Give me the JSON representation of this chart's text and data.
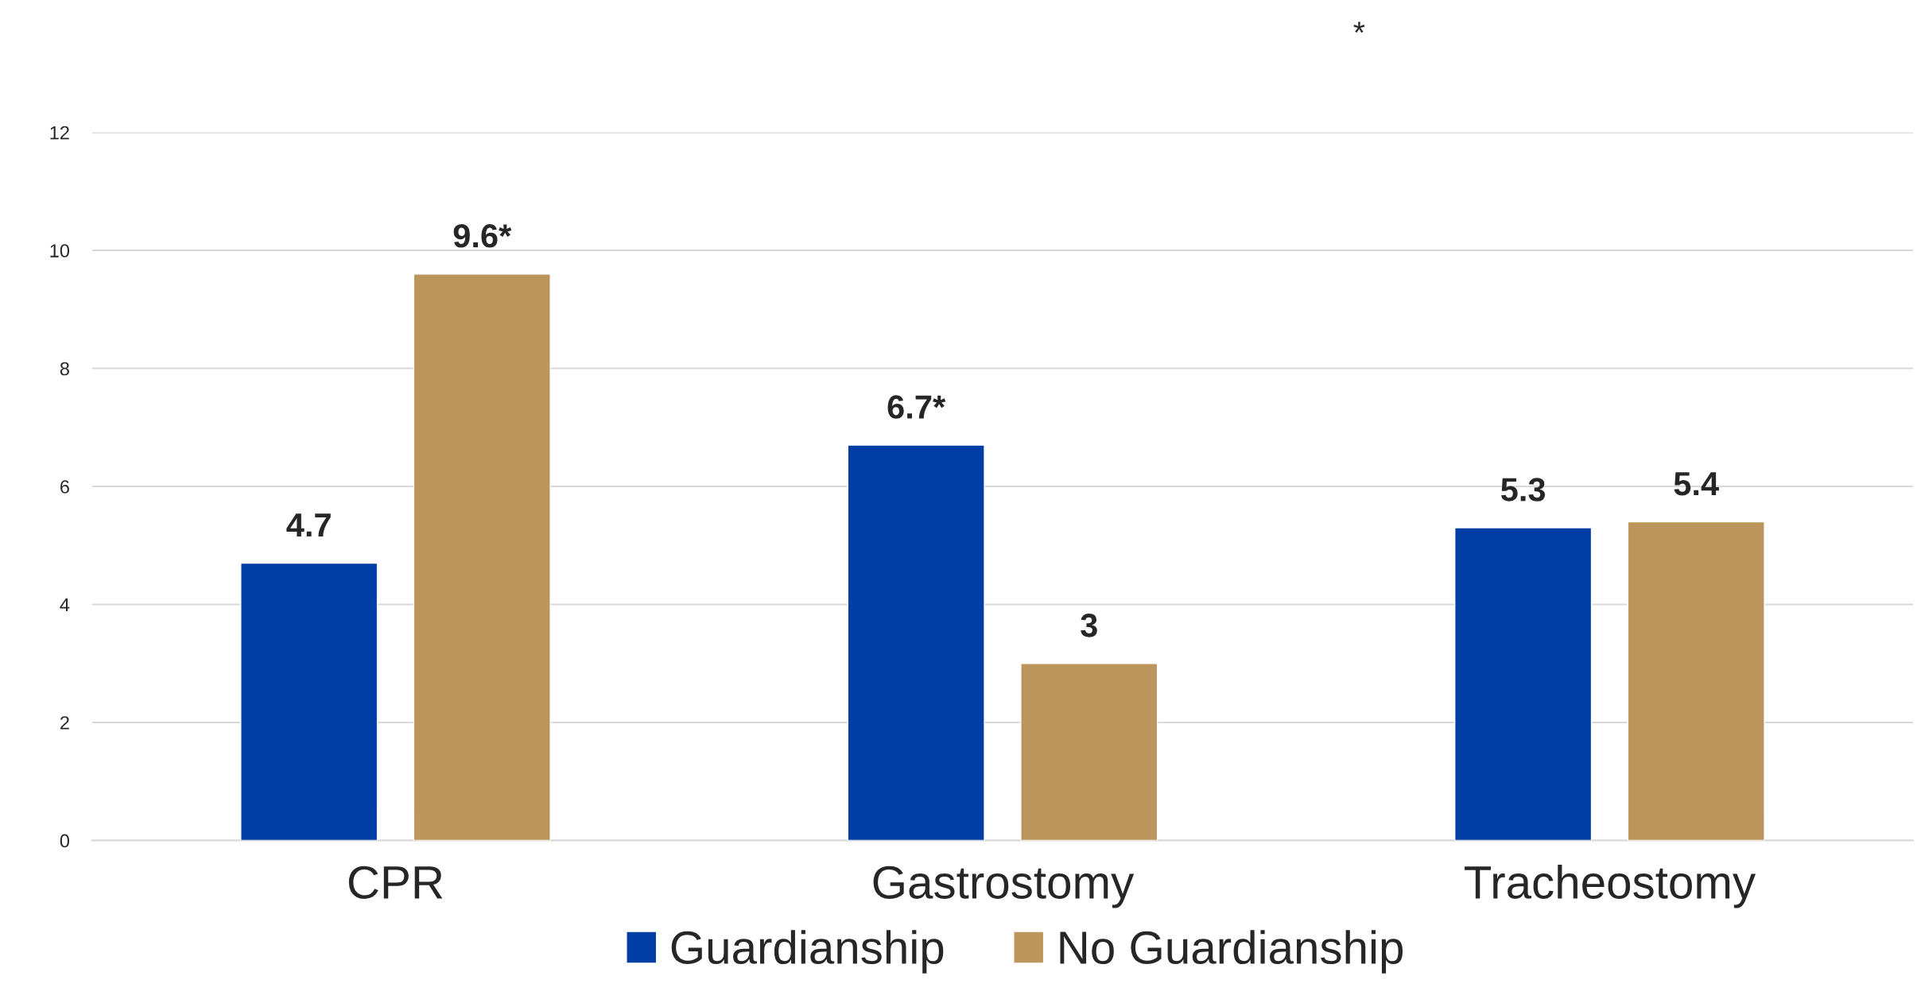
{
  "chart_data": {
    "type": "bar",
    "categories": [
      "CPR",
      "Gastrostomy",
      "Tracheostomy"
    ],
    "series": [
      {
        "name": "Guardianship",
        "color": "#003da5",
        "values": [
          4.7,
          6.7,
          5.3
        ],
        "value_labels": [
          "4.7",
          "6.7*",
          "5.3"
        ]
      },
      {
        "name": "No Guardianship",
        "color": "#bc955c",
        "values": [
          9.6,
          3,
          5.4
        ],
        "value_labels": [
          "9.6*",
          "3",
          "5.4"
        ]
      }
    ],
    "ylim": [
      0,
      12
    ],
    "yticks": [
      0,
      2,
      4,
      6,
      8,
      10,
      12
    ],
    "grid": "y",
    "legend": "bottom",
    "annotations": [
      "*"
    ]
  }
}
